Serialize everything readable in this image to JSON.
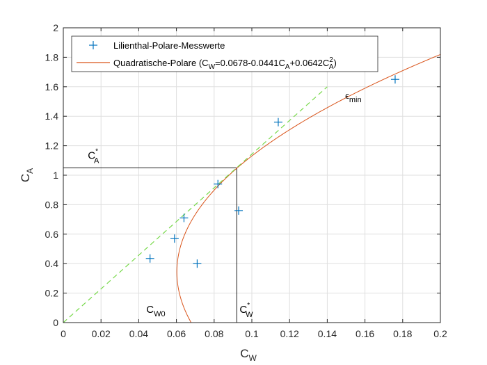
{
  "chart_data": {
    "type": "scatter",
    "xlabel": "C_W",
    "ylabel": "C_A",
    "xlim": [
      0,
      0.2
    ],
    "ylim": [
      0,
      2
    ],
    "x_ticks": [
      "0",
      "0.02",
      "0.04",
      "0.06",
      "0.08",
      "0.1",
      "0.12",
      "0.14",
      "0.16",
      "0.18",
      "0.2"
    ],
    "y_ticks": [
      "0",
      "0.2",
      "0.4",
      "0.6",
      "0.8",
      "1",
      "1.2",
      "1.4",
      "1.6",
      "1.8",
      "2"
    ],
    "grid": true,
    "legend_position": "top-left",
    "series": [
      {
        "name": "Lilienthal-Polare-Messwerte",
        "type": "scatter",
        "marker": "+",
        "color": "#0072BD",
        "points": [
          {
            "x": 0.046,
            "y": 0.435
          },
          {
            "x": 0.059,
            "y": 0.57
          },
          {
            "x": 0.064,
            "y": 0.71
          },
          {
            "x": 0.071,
            "y": 0.4
          },
          {
            "x": 0.082,
            "y": 0.94
          },
          {
            "x": 0.093,
            "y": 0.76
          },
          {
            "x": 0.114,
            "y": 1.36
          },
          {
            "x": 0.176,
            "y": 1.65
          }
        ]
      },
      {
        "name": "Quadratische-Polare (C_W=0.0678-0.0441C_A+0.0642C_A^2)",
        "type": "line",
        "color": "#D95319",
        "coefficients": {
          "c0": 0.0678,
          "c1": -0.0441,
          "c2": 0.0642
        },
        "ca_range": [
          0,
          1.82
        ]
      },
      {
        "type": "line",
        "style": "dashed",
        "color": "#77D94A",
        "points": [
          {
            "x": 0,
            "y": 0
          },
          {
            "x": 0.14,
            "y": 1.6
          }
        ]
      }
    ],
    "reference_lines": {
      "color": "#000000",
      "cw_star": 0.092,
      "ca_star": 1.05
    },
    "annotations": [
      {
        "id": "ca-star",
        "base": "C",
        "sub": "A",
        "sup": "*",
        "x": 0.013,
        "y": 1.11
      },
      {
        "id": "cw0",
        "base": "C",
        "sub": "W0",
        "sup": "",
        "x": 0.044,
        "y": 0.065
      },
      {
        "id": "cw-star",
        "base": "C",
        "sub": "W",
        "sup": "*",
        "x": 0.0935,
        "y": 0.065
      },
      {
        "id": "eps-min",
        "base": "ϵ",
        "sub": "min",
        "sup": "",
        "x": 0.1495,
        "y": 1.52
      }
    ],
    "legend": {
      "marker_label": "Lilienthal-Polare-Messwerte",
      "line_label_prefix": "Quadratische-Polare (C",
      "line_label_w": "W",
      "line_label_mid1": "=0.0678-0.0441C",
      "line_label_a1": "A",
      "line_label_mid2": "+0.0642C",
      "line_label_sup": "2",
      "line_label_a2": "A",
      "line_label_suffix": ")"
    }
  }
}
